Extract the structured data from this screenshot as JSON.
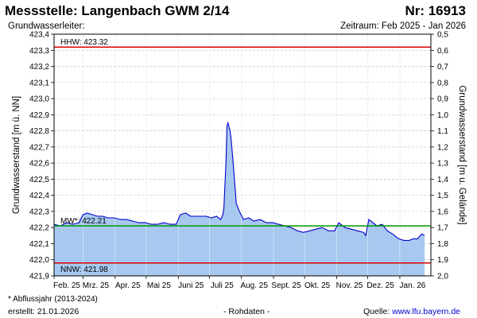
{
  "header": {
    "title": "Messstelle: Langenbach GWM 2/14",
    "number": "Nr: 16913",
    "aquifer": "Grundwasserleiter:",
    "period": "Zeitraum: Feb 2025 - Jan 2026"
  },
  "footer": {
    "footnote": "* Abflussjahr (2013-2024)",
    "created": "erstellt:  21.01.2026",
    "raw_data": "- Rohdaten -",
    "source_label": "Quelle:",
    "source_url": "www.lfu.bayern.de"
  },
  "colors": {
    "series_line": "#0000cc",
    "series_fill": "#a7c8ef",
    "hhw_line": "#dd0000",
    "nnw_line": "#dd0000",
    "mw_line": "#009900",
    "grid": "#c8c8c8"
  },
  "chart_data": {
    "type": "area",
    "ylabel": "Grundwasserstand [m ü. NN]",
    "ylabel_right": "Grundwasserstand [m u. Gelände]",
    "ylim": [
      421.9,
      423.4
    ],
    "ylim_right": [
      2.0,
      0.5
    ],
    "yticks": [
      "421,9",
      "422,0",
      "422,1",
      "422,2",
      "422,3",
      "422,4",
      "422,5",
      "422,6",
      "422,7",
      "422,8",
      "422,9",
      "423,0",
      "423,1",
      "423,2",
      "423,3",
      "423,4"
    ],
    "yticks_right": [
      "2,0",
      "1,9",
      "1,8",
      "1,7",
      "1,6",
      "1,5",
      "1,4",
      "1,3",
      "1,2",
      "1,1",
      "1,0",
      "0,9",
      "0,8",
      "0,7",
      "0,6",
      "0,5"
    ],
    "xlim": [
      "2025-02-01",
      "2026-01-31"
    ],
    "x_ticks": [
      {
        "date": "2025-02-01",
        "label": "Feb. 25"
      },
      {
        "date": "2025-03-01",
        "label": "Mrz. 25"
      },
      {
        "date": "2025-04-01",
        "label": "Apr. 25"
      },
      {
        "date": "2025-05-01",
        "label": "Mai 25"
      },
      {
        "date": "2025-06-01",
        "label": "Juni 25"
      },
      {
        "date": "2025-07-01",
        "label": "Juli 25"
      },
      {
        "date": "2025-08-01",
        "label": "Aug. 25"
      },
      {
        "date": "2025-09-01",
        "label": "Sept. 25"
      },
      {
        "date": "2025-10-01",
        "label": "Okt. 25"
      },
      {
        "date": "2025-11-01",
        "label": "Nov. 25"
      },
      {
        "date": "2025-12-01",
        "label": "Dez. 25"
      },
      {
        "date": "2026-01-01",
        "label": "Jan. 26"
      }
    ],
    "reference_lines": [
      {
        "key": "hhw",
        "label": "HHW: 423.32",
        "value": 423.32
      },
      {
        "key": "mw",
        "label": "MW*: 422.21",
        "value": 422.21
      },
      {
        "key": "nnw",
        "label": "NNW: 421.98",
        "value": 421.98
      }
    ],
    "grid": true,
    "series": [
      {
        "x": [
          "2025-02-01",
          "2025-02-07",
          "2025-02-13",
          "2025-02-19",
          "2025-02-25",
          "2025-03-01",
          "2025-03-05",
          "2025-03-10",
          "2025-03-15",
          "2025-03-20",
          "2025-03-25",
          "2025-03-31",
          "2025-04-06",
          "2025-04-12",
          "2025-04-18",
          "2025-04-24",
          "2025-04-30",
          "2025-05-06",
          "2025-05-12",
          "2025-05-18",
          "2025-05-24",
          "2025-05-30",
          "2025-06-03",
          "2025-06-08",
          "2025-06-13",
          "2025-06-18",
          "2025-06-23",
          "2025-06-28",
          "2025-07-03",
          "2025-07-08",
          "2025-07-12",
          "2025-07-14",
          "2025-07-15",
          "2025-07-17",
          "2025-07-18",
          "2025-07-19",
          "2025-07-21",
          "2025-07-22",
          "2025-07-24",
          "2025-07-27",
          "2025-07-30",
          "2025-08-03",
          "2025-08-08",
          "2025-08-13",
          "2025-08-19",
          "2025-08-25",
          "2025-08-31",
          "2025-09-06",
          "2025-09-12",
          "2025-09-18",
          "2025-09-24",
          "2025-09-30",
          "2025-10-06",
          "2025-10-12",
          "2025-10-18",
          "2025-10-24",
          "2025-10-30",
          "2025-11-03",
          "2025-11-09",
          "2025-11-15",
          "2025-11-21",
          "2025-11-27",
          "2025-11-29",
          "2025-12-02",
          "2025-12-06",
          "2025-12-10",
          "2025-12-15",
          "2025-12-20",
          "2025-12-25",
          "2025-12-31",
          "2026-01-05",
          "2026-01-10",
          "2026-01-14",
          "2026-01-18",
          "2026-01-22",
          "2026-01-25"
        ],
        "y": [
          422.22,
          422.21,
          422.23,
          422.22,
          422.23,
          422.28,
          422.29,
          422.28,
          422.27,
          422.27,
          422.26,
          422.26,
          422.25,
          422.25,
          422.24,
          422.23,
          422.23,
          422.22,
          422.22,
          422.23,
          422.22,
          422.22,
          422.28,
          422.29,
          422.27,
          422.27,
          422.27,
          422.27,
          422.26,
          422.27,
          422.25,
          422.28,
          422.32,
          422.6,
          422.83,
          422.85,
          422.8,
          422.75,
          422.6,
          422.35,
          422.3,
          422.25,
          422.26,
          422.24,
          422.25,
          422.23,
          422.23,
          422.22,
          422.21,
          422.2,
          422.18,
          422.17,
          422.18,
          422.19,
          422.2,
          422.18,
          422.18,
          422.23,
          422.2,
          422.19,
          422.18,
          422.17,
          422.15,
          422.25,
          422.23,
          422.21,
          422.22,
          422.18,
          422.16,
          422.13,
          422.12,
          422.12,
          422.13,
          422.13,
          422.16,
          422.15
        ]
      }
    ]
  }
}
